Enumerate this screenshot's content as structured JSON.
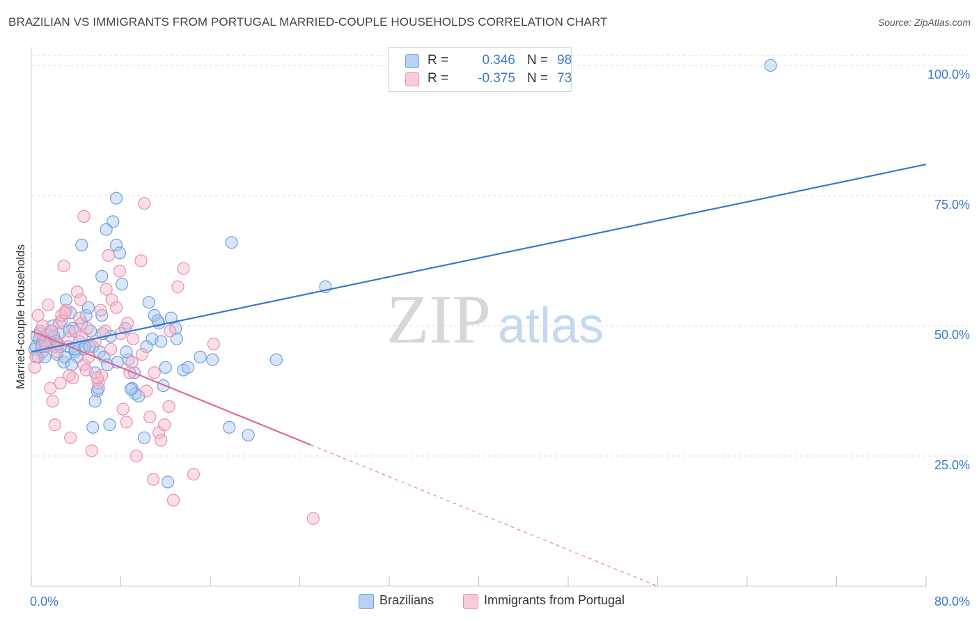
{
  "title": "BRAZILIAN VS IMMIGRANTS FROM PORTUGAL MARRIED-COUPLE HOUSEHOLDS CORRELATION CHART",
  "source": "Source: ZipAtlas.com",
  "legend_top": {
    "rows": [
      {
        "r_label": "R =",
        "r_value": "0.346",
        "n_label": "N =",
        "n_value": "98"
      },
      {
        "r_label": "R =",
        "r_value": "-0.375",
        "n_label": "N =",
        "n_value": "73"
      }
    ]
  },
  "legend_bottom": {
    "items": [
      "Brazilians",
      "Immigrants from Portugal"
    ]
  },
  "watermark": {
    "zip": "ZIP",
    "atlas": "atlas"
  },
  "colors": {
    "blue_fill": "#a9c7f0",
    "blue_stroke": "#6f9fde",
    "blue_line": "#3b78cc",
    "pink_fill": "#f6b8cb",
    "pink_stroke": "#ea8fac",
    "pink_line": "#e06894",
    "grid": "#dddddd",
    "tick_label": "#3b78cc"
  },
  "chart_data": {
    "type": "scatter",
    "title": "BRAZILIAN VS IMMIGRANTS FROM PORTUGAL MARRIED-COUPLE HOUSEHOLDS CORRELATION CHART",
    "xlabel": "",
    "ylabel": "Married-couple Households",
    "xlim": [
      0,
      80
    ],
    "ylim": [
      0,
      102
    ],
    "x_tick_labels": [
      "0.0%",
      "80.0%"
    ],
    "y_ticks": [
      25,
      50,
      75,
      100
    ],
    "y_tick_labels": [
      "25.0%",
      "50.0%",
      "75.0%",
      "100.0%"
    ],
    "grid": true,
    "series": [
      {
        "name": "Brazilians",
        "color": "blue",
        "R": 0.346,
        "N": 98,
        "trendline": {
          "x": [
            0,
            80
          ],
          "y": [
            45.0,
            81.0
          ],
          "solid_until": 80
        },
        "points": [
          [
            0.3,
            45.5
          ],
          [
            0.5,
            48
          ],
          [
            0.6,
            44
          ],
          [
            0.8,
            49
          ],
          [
            0.9,
            46.5
          ],
          [
            1.1,
            47.5
          ],
          [
            1.3,
            46
          ],
          [
            1.5,
            48.5
          ],
          [
            1.7,
            47
          ],
          [
            1.9,
            50
          ],
          [
            2.1,
            46
          ],
          [
            2.3,
            44.5
          ],
          [
            2.5,
            48.5
          ],
          [
            2.7,
            51
          ],
          [
            2.9,
            43
          ],
          [
            3.1,
            55
          ],
          [
            3.3,
            46
          ],
          [
            3.5,
            52.5
          ],
          [
            3.7,
            49.5
          ],
          [
            3.9,
            45
          ],
          [
            4.1,
            44
          ],
          [
            4.3,
            47
          ],
          [
            4.5,
            50.5
          ],
          [
            4.7,
            45.5
          ],
          [
            4.9,
            52
          ],
          [
            5.1,
            53.5
          ],
          [
            5.3,
            49
          ],
          [
            5.5,
            46
          ],
          [
            5.7,
            41
          ],
          [
            5.9,
            37.5
          ],
          [
            6.1,
            45
          ],
          [
            6.3,
            52
          ],
          [
            6.5,
            44
          ],
          [
            6.8,
            42.5
          ],
          [
            7.1,
            48
          ],
          [
            7.3,
            70
          ],
          [
            7.6,
            65.5
          ],
          [
            7.9,
            64
          ],
          [
            8.1,
            58
          ],
          [
            8.4,
            49.5
          ],
          [
            8.7,
            43.5
          ],
          [
            9.0,
            38
          ],
          [
            9.3,
            37
          ],
          [
            9.6,
            36.5
          ],
          [
            10.1,
            28.5
          ],
          [
            10.5,
            54.5
          ],
          [
            10.8,
            47.5
          ],
          [
            11.4,
            50.5
          ],
          [
            11.8,
            38.5
          ],
          [
            12.2,
            20
          ],
          [
            12.9,
            49.5
          ],
          [
            13.6,
            41.5
          ],
          [
            16.2,
            43.5
          ],
          [
            17.7,
            30.5
          ],
          [
            17.9,
            66
          ],
          [
            19.4,
            29
          ],
          [
            21.9,
            43.5
          ],
          [
            26.3,
            57.5
          ],
          [
            66.1,
            100
          ],
          [
            7.6,
            74.5
          ],
          [
            6.7,
            68.5
          ],
          [
            4.5,
            65.5
          ],
          [
            6.3,
            59.5
          ],
          [
            5.7,
            35.5
          ],
          [
            3.9,
            45.5
          ],
          [
            2.4,
            46.5
          ],
          [
            1.6,
            47
          ],
          [
            1.0,
            45
          ],
          [
            0.7,
            47.5
          ],
          [
            0.4,
            46
          ],
          [
            2.0,
            48
          ],
          [
            3.0,
            44
          ],
          [
            3.6,
            42.5
          ],
          [
            4.8,
            46
          ],
          [
            5.5,
            30.5
          ],
          [
            6.0,
            38
          ],
          [
            7.0,
            31
          ],
          [
            8.5,
            45
          ],
          [
            9.2,
            41
          ],
          [
            10.3,
            46
          ],
          [
            11.0,
            52
          ],
          [
            11.6,
            47
          ],
          [
            12.5,
            51.5
          ],
          [
            13.0,
            47.5
          ],
          [
            14.0,
            42
          ],
          [
            15.1,
            44
          ],
          [
            1.2,
            44
          ],
          [
            2.6,
            46
          ],
          [
            1.8,
            49
          ],
          [
            0.9,
            46
          ],
          [
            5.2,
            46
          ],
          [
            6.4,
            48.5
          ],
          [
            7.7,
            43
          ],
          [
            8.9,
            37.8
          ],
          [
            11.3,
            51
          ],
          [
            12.0,
            42
          ],
          [
            2.2,
            47
          ],
          [
            3.4,
            49
          ]
        ]
      },
      {
        "name": "Immigrants from Portugal",
        "color": "pink",
        "R": -0.375,
        "N": 73,
        "trendline": {
          "x": [
            0,
            56
          ],
          "y": [
            49.0,
            0.0
          ],
          "solid_until": 25
        },
        "points": [
          [
            0.4,
            44
          ],
          [
            0.6,
            52
          ],
          [
            0.8,
            48.5
          ],
          [
            1.0,
            50
          ],
          [
            1.3,
            46
          ],
          [
            1.5,
            54
          ],
          [
            1.7,
            38
          ],
          [
            1.9,
            35.5
          ],
          [
            2.1,
            31
          ],
          [
            2.3,
            45
          ],
          [
            2.5,
            50.5
          ],
          [
            2.7,
            52
          ],
          [
            2.9,
            61.5
          ],
          [
            3.1,
            53
          ],
          [
            3.3,
            47.5
          ],
          [
            3.5,
            28.5
          ],
          [
            3.7,
            40
          ],
          [
            3.9,
            49
          ],
          [
            4.1,
            56.5
          ],
          [
            4.3,
            51.5
          ],
          [
            4.5,
            48
          ],
          [
            4.7,
            42.5
          ],
          [
            4.9,
            41.5
          ],
          [
            5.1,
            44
          ],
          [
            5.4,
            26
          ],
          [
            5.7,
            47
          ],
          [
            6.0,
            39
          ],
          [
            6.3,
            40.5
          ],
          [
            6.6,
            49
          ],
          [
            6.9,
            63.5
          ],
          [
            7.2,
            55
          ],
          [
            7.6,
            53.5
          ],
          [
            7.9,
            60.5
          ],
          [
            8.2,
            34
          ],
          [
            8.5,
            31.5
          ],
          [
            8.8,
            41
          ],
          [
            9.1,
            47.5
          ],
          [
            9.4,
            25
          ],
          [
            9.9,
            44.5
          ],
          [
            10.3,
            37.5
          ],
          [
            10.6,
            32.5
          ],
          [
            11.0,
            41
          ],
          [
            11.4,
            29.5
          ],
          [
            11.9,
            31
          ],
          [
            12.3,
            34.5
          ],
          [
            12.7,
            16.5
          ],
          [
            13.1,
            57.5
          ],
          [
            13.6,
            61
          ],
          [
            14.5,
            21.5
          ],
          [
            16.3,
            46.5
          ],
          [
            25.2,
            13
          ],
          [
            10.1,
            73.5
          ],
          [
            9.8,
            62.5
          ],
          [
            4.7,
            71
          ],
          [
            7.1,
            45.5
          ],
          [
            8.0,
            48.5
          ],
          [
            6.2,
            53
          ],
          [
            3.4,
            40.5
          ],
          [
            2.6,
            39
          ],
          [
            1.2,
            47
          ],
          [
            0.3,
            42
          ],
          [
            1.8,
            49
          ],
          [
            2.4,
            46.5
          ],
          [
            3.0,
            52.5
          ],
          [
            5.0,
            49.5
          ],
          [
            9.0,
            43
          ],
          [
            10.9,
            20.5
          ],
          [
            11.6,
            28
          ],
          [
            6.7,
            57
          ],
          [
            4.4,
            55
          ],
          [
            5.9,
            40
          ],
          [
            12.4,
            49
          ],
          [
            8.6,
            50.5
          ]
        ]
      }
    ]
  }
}
